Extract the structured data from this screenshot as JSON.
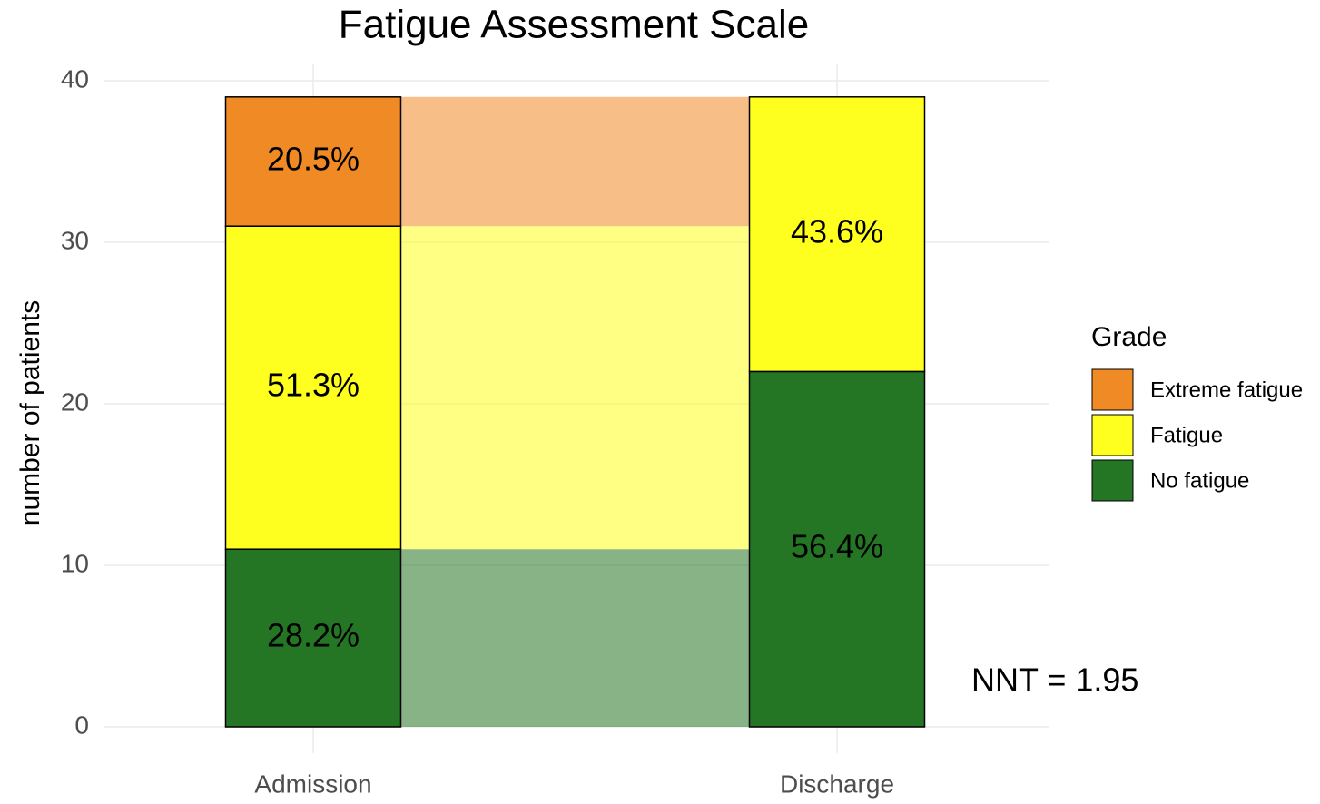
{
  "chart_data": {
    "type": "stacked_bar",
    "title": "Fatigue Assessment Scale",
    "y_label": "number of patients",
    "categories": [
      "Admission",
      "Discharge"
    ],
    "series": [
      {
        "name": "Extreme fatigue",
        "color": "#f08a24",
        "values": [
          8,
          0
        ],
        "labels": [
          "20.5%",
          null
        ]
      },
      {
        "name": "Fatigue",
        "color": "#ffff1f",
        "values": [
          20,
          17
        ],
        "labels": [
          "51.3%",
          "43.6%"
        ]
      },
      {
        "name": "No fatigue",
        "color": "#247524",
        "values": [
          11,
          22
        ],
        "labels": [
          "28.2%",
          "56.4%"
        ]
      }
    ],
    "ylim": [
      0,
      40
    ],
    "yticks": [
      0,
      10,
      20,
      30,
      40
    ],
    "grid": true,
    "legend_title": "Grade",
    "legend_position": "right",
    "annotation": "NNT = 1.95"
  }
}
